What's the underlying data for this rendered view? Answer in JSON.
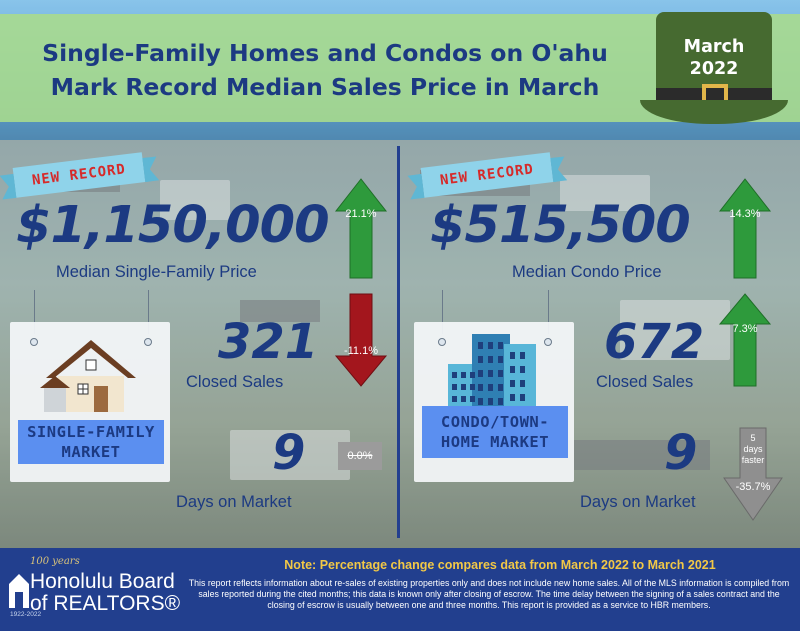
{
  "header": {
    "title_line1": "Single-Family Homes and Condos on O'ahu",
    "title_line2": "Mark Record Median Sales Price in March",
    "month": "March",
    "year": "2022"
  },
  "single_family": {
    "ribbon": "NEW RECORD",
    "median_price": "$1,150,000",
    "median_price_label": "Median Single-Family Price",
    "median_price_change": "21.1%",
    "closed_sales": "321",
    "closed_sales_label": "Closed Sales",
    "closed_sales_change": "-11.1%",
    "days_on_market": "9",
    "days_on_market_label": "Days on Market",
    "days_on_market_change": "0.0%",
    "card_label_line1": "SINGLE-FAMILY",
    "card_label_line2": "MARKET"
  },
  "condo": {
    "ribbon": "NEW RECORD",
    "median_price": "$515,500",
    "median_price_label": "Median Condo Price",
    "median_price_change": "14.3%",
    "closed_sales": "672",
    "closed_sales_label": "Closed Sales",
    "closed_sales_change": "7.3%",
    "days_on_market": "9",
    "days_on_market_label": "Days on Market",
    "days_on_market_change": "-35.7%",
    "days_faster_line1": "5",
    "days_faster_line2": "days",
    "days_faster_line3": "faster",
    "card_label_line1": "CONDO/TOWN-",
    "card_label_line2": "HOME MARKET"
  },
  "footer": {
    "note": "Note: Percentage change compares data from March 2022 to March 2021",
    "disclaimer": "This report reflects information about re-sales of existing properties only and does not include new home sales. All of the MLS information is compiled from sales reported during the cited months; this data is known only after closing of escrow. The time delay between the signing of a sales contract and the closing of escrow is usually between one and three months. This report is provided as a service to HBR members.",
    "logo_years": "100 years",
    "logo_name_line1": "Honolulu Board",
    "logo_name_line2": "of REALTORS®",
    "logo_range": "1922-2022"
  },
  "colors": {
    "up": "#2e9a3c",
    "down": "#a3161d",
    "flat": "#9b9b9b",
    "navy": "#1c3a82"
  }
}
